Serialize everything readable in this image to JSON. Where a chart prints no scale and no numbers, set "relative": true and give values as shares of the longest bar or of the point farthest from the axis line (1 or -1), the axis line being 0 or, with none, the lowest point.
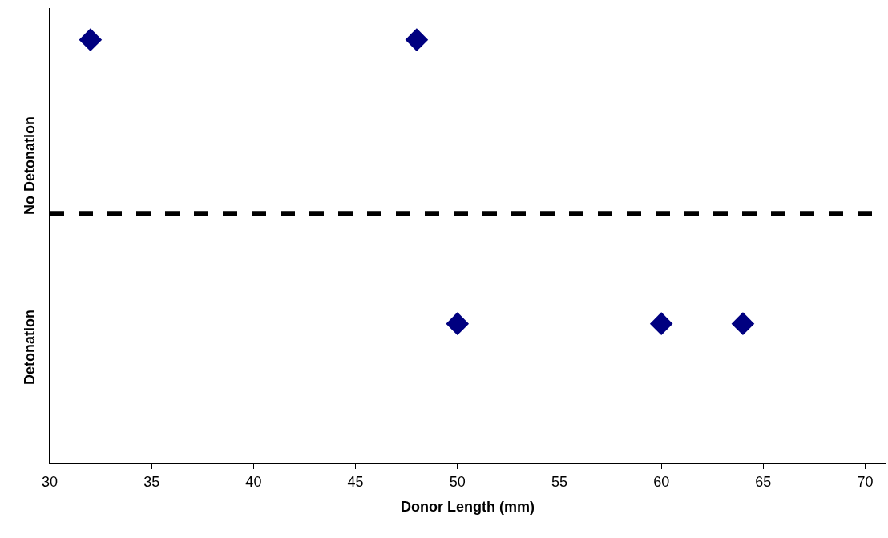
{
  "chart_data": {
    "type": "scatter",
    "relative": true,
    "xlabel": "Donor Length (mm)",
    "x": [
      32,
      48,
      50,
      60,
      64
    ],
    "series": [
      {
        "color": "#000080",
        "values": [
          1,
          1,
          0.33,
          0.33,
          0.33
        ]
      }
    ],
    "xlim": [
      30,
      71
    ],
    "xticks": [
      30,
      35,
      40,
      45,
      50,
      55,
      60,
      65,
      70
    ],
    "ref_lines": [
      {
        "axis": "y",
        "value": 0.59,
        "color": "#000000",
        "line_style": "dashed"
      }
    ],
    "annotations": [
      "No Detonation",
      "Detonation"
    ],
    "marker": "diamond"
  }
}
